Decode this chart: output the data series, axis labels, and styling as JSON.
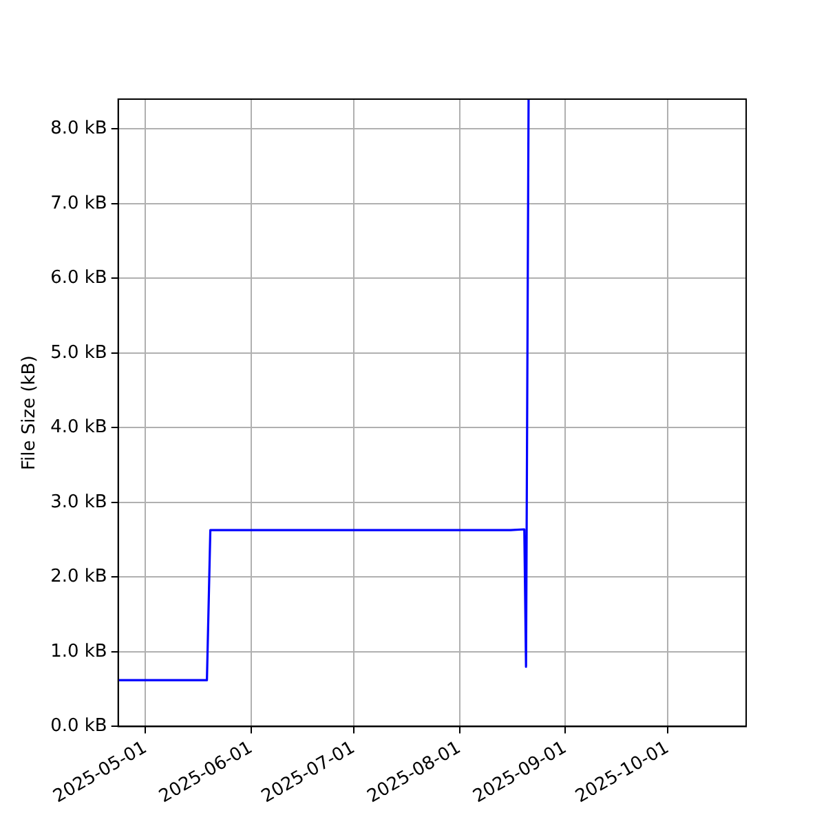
{
  "chart_data": {
    "type": "line",
    "ylabel": "File Size (kB)",
    "x": [
      "2025-04-23",
      "2025-05-19",
      "2025-05-20",
      "2025-08-16",
      "2025-08-20",
      "2025-08-20T12:00",
      "2025-08-21T06:00"
    ],
    "series": [
      {
        "color": "#0000ff",
        "values": [
          0.62,
          0.62,
          2.63,
          2.63,
          2.64,
          0.8,
          8.4
        ]
      }
    ],
    "xlim": [
      "2025-04-23",
      "2025-10-24"
    ],
    "xticks": [
      "2025-05-01",
      "2025-06-01",
      "2025-07-01",
      "2025-08-01",
      "2025-09-01",
      "2025-10-01"
    ],
    "ylim": [
      0,
      8.4
    ],
    "yticks": [
      {
        "value": 0,
        "label": "0.0 kB"
      },
      {
        "value": 1,
        "label": "1.0 kB"
      },
      {
        "value": 2,
        "label": "2.0 kB"
      },
      {
        "value": 3,
        "label": "3.0 kB"
      },
      {
        "value": 4,
        "label": "4.0 kB"
      },
      {
        "value": 5,
        "label": "5.0 kB"
      },
      {
        "value": 6,
        "label": "6.0 kB"
      },
      {
        "value": 7,
        "label": "7.0 kB"
      },
      {
        "value": 8,
        "label": "8.0 kB"
      }
    ],
    "grid": true,
    "legend": false,
    "marker": "none",
    "line_style": "solid"
  }
}
